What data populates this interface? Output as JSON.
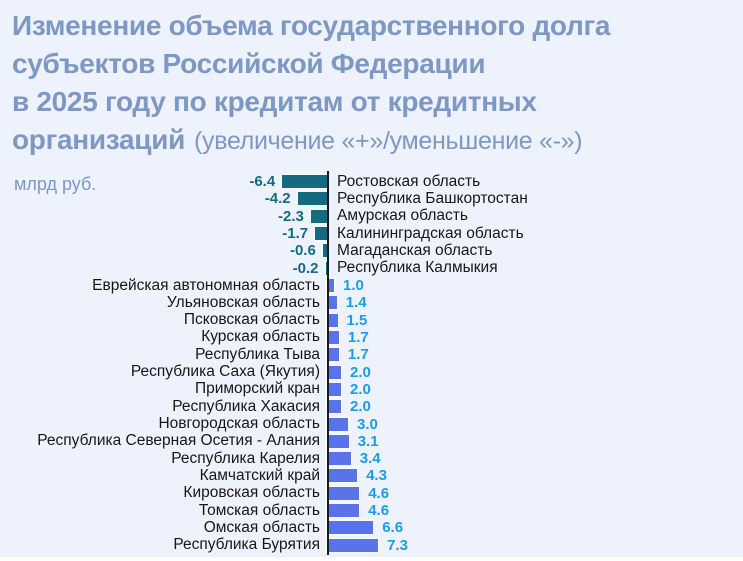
{
  "title_lines": [
    "Изменение объема государственного долга",
    "субъектов Российской Федерации",
    "в 2025 году по кредитам от кредитных",
    "организаций"
  ],
  "subtitle": "(увеличение «+»/уменьшение «-»)",
  "unit_label": "млрд руб.",
  "colors": {
    "background": "#edf2fc",
    "title_text": "#7d98c3",
    "negative_bar": "#166a80",
    "negative_value_label": "#166a80",
    "positive_bar": "#5a73e8",
    "positive_value_label": "#1b9ce8",
    "region_text": "#171717",
    "axis_line": "#1a1a1a"
  },
  "chart_data": {
    "type": "bar",
    "orientation": "horizontal",
    "title": "Изменение объема государственного долга субъектов Российской Федерации в 2025 году по кредитам от кредитных организаций (увеличение «+»/уменьшение «-»)",
    "unit": "млрд руб.",
    "value_axis_note": "negative bars extend left of baseline, positive bars extend right; values labeled with one decimal",
    "categories": [
      "Ростовская область",
      "Республика Башкортостан",
      "Амурская область",
      "Калининградская область",
      "Магаданская область",
      "Республика Калмыкия",
      "Еврейская автономная область",
      "Ульяновская область",
      "Псковская область",
      "Курская область",
      "Республика Тыва",
      "Республика Саха (Якутия)",
      "Приморский кран",
      "Республика Хакасия",
      "Новгородская область",
      "Республика Северная Осетия - Алания",
      "Республика Карелия",
      "Камчатский край",
      "Кировская область",
      "Томская область",
      "Омская область",
      "Республика Бурятия"
    ],
    "values": [
      -6.4,
      -4.2,
      -2.3,
      -1.7,
      -0.6,
      -0.2,
      1.0,
      1.4,
      1.5,
      1.7,
      1.7,
      2.0,
      2.0,
      2.0,
      3.0,
      3.1,
      3.4,
      4.3,
      4.6,
      4.6,
      6.6,
      7.3
    ],
    "xlim": [
      -7.5,
      8
    ],
    "grid": false,
    "legend": false
  }
}
